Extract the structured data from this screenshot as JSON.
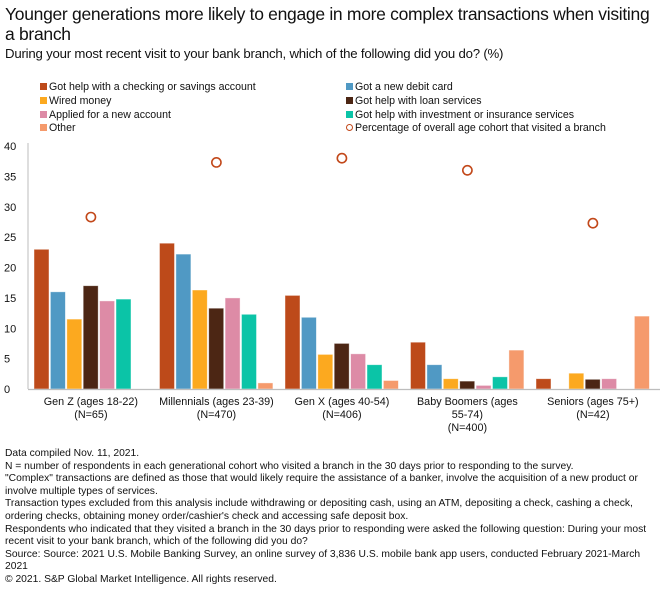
{
  "header": {
    "title": "Younger generations more likely to engage in more complex transactions when visiting a branch",
    "subtitle": "During your most recent visit to your bank branch, which of the following did you do? (%)"
  },
  "chart_data": {
    "type": "bar",
    "title": "Younger generations more likely to engage in more complex transactions when visiting a branch",
    "subtitle": "During your most recent visit to your bank branch, which of the following did you do? (%)",
    "xlabel": "",
    "ylabel": "",
    "ylim": [
      0,
      40
    ],
    "yticks": [
      0,
      5,
      10,
      15,
      20,
      25,
      30,
      35,
      40
    ],
    "grid": false,
    "legend_position": "top",
    "categories": [
      [
        "Gen Z (ages 18-22)",
        "(N=65)"
      ],
      [
        "Millennials (ages 23-39)",
        "(N=470)"
      ],
      [
        "Gen X (ages 40-54)",
        "(N=406)"
      ],
      [
        "Baby Boomers (ages",
        "55-74)",
        "(N=400)"
      ],
      [
        "Seniors (ages 75+)",
        "(N=42)"
      ]
    ],
    "series": [
      {
        "name": "Got help with a checking or savings account",
        "color": "#BD4A1A",
        "values": [
          23.0,
          24.0,
          15.4,
          7.7,
          1.7
        ]
      },
      {
        "name": "Got a new debit card",
        "color": "#5099C4",
        "values": [
          16.0,
          22.2,
          11.8,
          4.0,
          0.0
        ]
      },
      {
        "name": "Wired money",
        "color": "#FCA91F",
        "values": [
          11.5,
          16.3,
          5.7,
          1.7,
          2.6
        ]
      },
      {
        "name": "Got help with loan services",
        "color": "#4C2614",
        "values": [
          17.0,
          13.3,
          7.5,
          1.3,
          1.6
        ]
      },
      {
        "name": "Applied for a new account",
        "color": "#DD8BA6",
        "values": [
          14.5,
          15.0,
          5.8,
          0.6,
          1.7
        ]
      },
      {
        "name": "Got help with investment or insurance services",
        "color": "#0BC4A7",
        "values": [
          14.8,
          12.3,
          4.0,
          2.0,
          0.0
        ]
      },
      {
        "name": "Other",
        "color": "#F59A6C",
        "values": [
          0.0,
          1.0,
          1.4,
          6.4,
          12.0
        ]
      }
    ],
    "markers": {
      "name": "Percentage of overall age cohort that visited a branch",
      "color": "#C2481A",
      "values": [
        28.3,
        37.3,
        38.0,
        36.0,
        27.3
      ]
    }
  },
  "legend": {
    "left": [
      {
        "label": "Got help with a checking or savings account",
        "color": "#BD4A1A"
      },
      {
        "label": "Wired money",
        "color": "#FCA91F"
      },
      {
        "label": "Applied for a new account",
        "color": "#DD8BA6"
      },
      {
        "label": "Other",
        "color": "#F59A6C"
      }
    ],
    "right": [
      {
        "label": "Got a new debit card",
        "color": "#5099C4"
      },
      {
        "label": "Got help with loan services",
        "color": "#4C2614"
      },
      {
        "label": "Got help with investment or insurance services",
        "color": "#0BC4A7"
      },
      {
        "label": "Percentage of overall age cohort that visited a branch",
        "color": "#C2481A"
      }
    ]
  },
  "notes": [
    "Data compiled Nov. 11, 2021.",
    "N = number of respondents in each generational cohort who visited a branch in the 30 days prior to responding to the survey.",
    "\"Complex\" transactions are defined as those that would likely require the assistance of a banker, involve the acquisition of a new product or involve multiple types of services.",
    "Transaction types excluded from this analysis include withdrawing or depositing cash, using an ATM, depositing a check, cashing a check, ordering checks, obtaining money order/cashier's check and accessing safe deposit box.",
    "Respondents who indicated that they visited a branch in the 30 days prior to responding were asked the following question: During your most recent visit to your bank branch, which of the following did you do?",
    "Source: Source: 2021 U.S. Mobile Banking Survey, an online survey of 3,836 U.S. mobile bank app users, conducted February 2021-March 2021",
    "© 2021. S&P Global Market Intelligence. All rights reserved."
  ]
}
